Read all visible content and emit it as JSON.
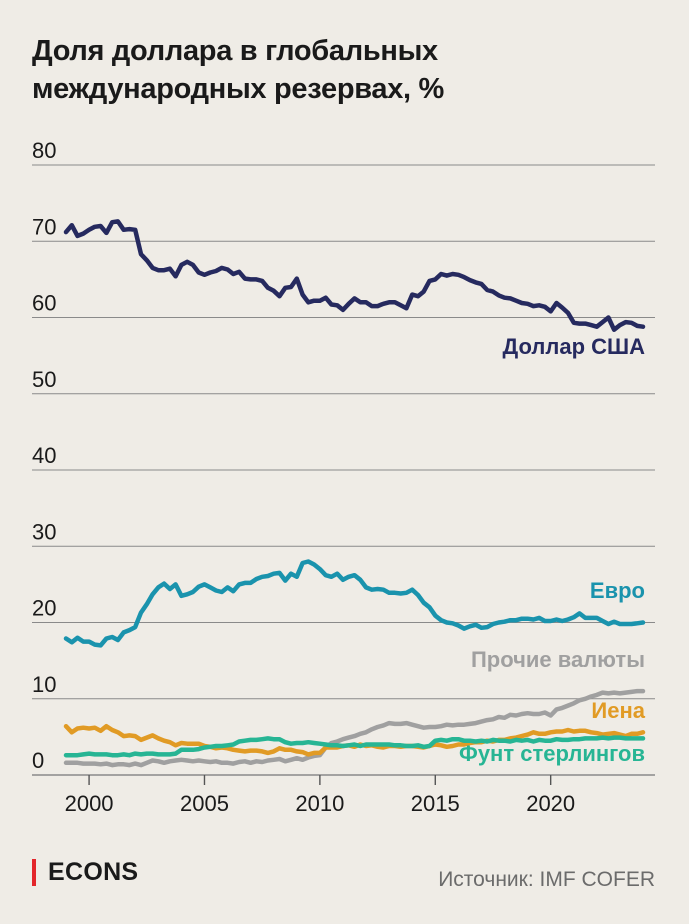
{
  "title": "Доля доллара в глобальных международных резервах, %",
  "source": "Источник: IMF COFER",
  "brand": "ECONS",
  "colors": {
    "background": "#efece6",
    "brand_red": "#e3262b",
    "grid": "#8a8a8a",
    "usd": "#262a5f",
    "eur": "#1a93ad",
    "other": "#a0a0a0",
    "jpy": "#e19b25",
    "gbp": "#27b594"
  },
  "chart_data": {
    "type": "line",
    "title": "Доля доллара в глобальных международных резервах, %",
    "xlabel": "",
    "ylabel": "",
    "xlim": [
      1999,
      2024
    ],
    "ylim": [
      0,
      80
    ],
    "x_ticks": [
      2000,
      2005,
      2010,
      2015,
      2020
    ],
    "y_ticks": [
      0,
      10,
      20,
      30,
      40,
      50,
      60,
      70,
      80
    ],
    "grid": true,
    "series": [
      {
        "name": "Доллар США",
        "color": "#262a5f",
        "x": [
          1999.0,
          1999.25,
          1999.5,
          1999.75,
          2000.0,
          2000.25,
          2000.5,
          2000.75,
          2001.0,
          2001.25,
          2001.5,
          2001.75,
          2002.0,
          2002.25,
          2002.5,
          2002.75,
          2003.0,
          2003.25,
          2003.5,
          2003.75,
          2004.0,
          2004.25,
          2004.5,
          2004.75,
          2005.0,
          2005.25,
          2005.5,
          2005.75,
          2006.0,
          2006.25,
          2006.5,
          2006.75,
          2007.0,
          2007.25,
          2007.5,
          2007.75,
          2008.0,
          2008.25,
          2008.5,
          2008.75,
          2009.0,
          2009.25,
          2009.5,
          2009.75,
          2010.0,
          2010.25,
          2010.5,
          2010.75,
          2011.0,
          2011.25,
          2011.5,
          2011.75,
          2012.0,
          2012.25,
          2012.5,
          2012.75,
          2013.0,
          2013.25,
          2013.5,
          2013.75,
          2014.0,
          2014.25,
          2014.5,
          2014.75,
          2015.0,
          2015.25,
          2015.5,
          2015.75,
          2016.0,
          2016.25,
          2016.5,
          2016.75,
          2017.0,
          2017.25,
          2017.5,
          2017.75,
          2018.0,
          2018.25,
          2018.5,
          2018.75,
          2019.0,
          2019.25,
          2019.5,
          2019.75,
          2020.0,
          2020.25,
          2020.5,
          2020.75,
          2021.0,
          2021.25,
          2021.5,
          2021.75,
          2022.0,
          2022.25,
          2022.5,
          2022.75,
          2023.0,
          2023.25,
          2023.5,
          2023.75,
          2024.0
        ],
        "values": [
          71.2,
          72.1,
          70.7,
          71.0,
          71.5,
          71.9,
          72.0,
          71.1,
          72.5,
          72.6,
          71.5,
          71.6,
          71.5,
          68.3,
          67.5,
          66.5,
          66.2,
          66.2,
          66.4,
          65.4,
          66.9,
          67.3,
          66.9,
          65.9,
          65.6,
          65.9,
          66.1,
          66.5,
          66.3,
          65.7,
          66.0,
          65.1,
          65.0,
          65.0,
          64.8,
          63.9,
          63.5,
          62.8,
          63.9,
          64.0,
          65.1,
          63.0,
          62.0,
          62.2,
          62.2,
          62.6,
          61.7,
          61.6,
          61.0,
          61.8,
          62.5,
          62.0,
          62.0,
          61.5,
          61.5,
          61.8,
          62.0,
          62.0,
          61.6,
          61.2,
          63.0,
          62.8,
          63.4,
          64.8,
          65.0,
          65.7,
          65.5,
          65.7,
          65.6,
          65.3,
          64.9,
          64.6,
          64.4,
          63.6,
          63.4,
          62.9,
          62.6,
          62.5,
          62.2,
          61.9,
          61.8,
          61.5,
          61.6,
          61.4,
          60.8,
          61.9,
          61.3,
          60.6,
          59.3,
          59.2,
          59.2,
          59.0,
          58.8,
          59.4,
          60.0,
          58.4,
          59.0,
          59.4,
          59.3,
          58.9,
          58.8
        ]
      },
      {
        "name": "Евро",
        "color": "#1a93ad",
        "x": [
          1999.0,
          1999.25,
          1999.5,
          1999.75,
          2000.0,
          2000.25,
          2000.5,
          2000.75,
          2001.0,
          2001.25,
          2001.5,
          2001.75,
          2002.0,
          2002.25,
          2002.5,
          2002.75,
          2003.0,
          2003.25,
          2003.5,
          2003.75,
          2004.0,
          2004.25,
          2004.5,
          2004.75,
          2005.0,
          2005.25,
          2005.5,
          2005.75,
          2006.0,
          2006.25,
          2006.5,
          2006.75,
          2007.0,
          2007.25,
          2007.5,
          2007.75,
          2008.0,
          2008.25,
          2008.5,
          2008.75,
          2009.0,
          2009.25,
          2009.5,
          2009.75,
          2010.0,
          2010.25,
          2010.5,
          2010.75,
          2011.0,
          2011.25,
          2011.5,
          2011.75,
          2012.0,
          2012.25,
          2012.5,
          2012.75,
          2013.0,
          2013.25,
          2013.5,
          2013.75,
          2014.0,
          2014.25,
          2014.5,
          2014.75,
          2015.0,
          2015.25,
          2015.5,
          2015.75,
          2016.0,
          2016.25,
          2016.5,
          2016.75,
          2017.0,
          2017.25,
          2017.5,
          2017.75,
          2018.0,
          2018.25,
          2018.5,
          2018.75,
          2019.0,
          2019.25,
          2019.5,
          2019.75,
          2020.0,
          2020.25,
          2020.5,
          2020.75,
          2021.0,
          2021.25,
          2021.5,
          2021.75,
          2022.0,
          2022.25,
          2022.5,
          2022.75,
          2023.0,
          2023.25,
          2023.5,
          2023.75,
          2024.0
        ],
        "values": [
          17.9,
          17.4,
          18.0,
          17.5,
          17.5,
          17.1,
          17.0,
          17.9,
          18.1,
          17.7,
          18.7,
          19.0,
          19.4,
          21.3,
          22.4,
          23.7,
          24.6,
          25.1,
          24.4,
          25.0,
          23.5,
          23.7,
          24.0,
          24.7,
          25.0,
          24.6,
          24.2,
          24.0,
          24.6,
          24.1,
          25.0,
          25.2,
          25.2,
          25.7,
          26.0,
          26.1,
          26.4,
          26.5,
          25.5,
          26.4,
          26.0,
          27.8,
          28.0,
          27.6,
          27.0,
          26.2,
          26.0,
          26.4,
          25.6,
          26.0,
          26.2,
          25.6,
          24.6,
          24.3,
          24.4,
          24.3,
          23.9,
          23.9,
          23.8,
          23.9,
          24.3,
          23.6,
          22.6,
          22.0,
          20.9,
          20.3,
          20.0,
          19.9,
          19.6,
          19.2,
          19.5,
          19.7,
          19.3,
          19.4,
          19.8,
          20.0,
          20.1,
          20.3,
          20.3,
          20.5,
          20.5,
          20.4,
          20.6,
          20.2,
          20.2,
          20.4,
          20.2,
          20.4,
          20.7,
          21.2,
          20.6,
          20.6,
          20.6,
          20.2,
          19.8,
          20.1,
          19.8,
          19.8,
          19.8,
          19.9,
          20.0
        ]
      },
      {
        "name": "Прочие валюты",
        "color": "#a0a0a0",
        "x": [
          1999.0,
          1999.25,
          1999.5,
          1999.75,
          2000.0,
          2000.25,
          2000.5,
          2000.75,
          2001.0,
          2001.25,
          2001.5,
          2001.75,
          2002.0,
          2002.25,
          2002.5,
          2002.75,
          2003.0,
          2003.25,
          2003.5,
          2003.75,
          2004.0,
          2004.25,
          2004.5,
          2004.75,
          2005.0,
          2005.25,
          2005.5,
          2005.75,
          2006.0,
          2006.25,
          2006.5,
          2006.75,
          2007.0,
          2007.25,
          2007.5,
          2007.75,
          2008.0,
          2008.25,
          2008.5,
          2008.75,
          2009.0,
          2009.25,
          2009.5,
          2009.75,
          2010.0,
          2010.25,
          2010.5,
          2010.75,
          2011.0,
          2011.25,
          2011.5,
          2011.75,
          2012.0,
          2012.25,
          2012.5,
          2012.75,
          2013.0,
          2013.25,
          2013.5,
          2013.75,
          2014.0,
          2014.25,
          2014.5,
          2014.75,
          2015.0,
          2015.25,
          2015.5,
          2015.75,
          2016.0,
          2016.25,
          2016.5,
          2016.75,
          2017.0,
          2017.25,
          2017.5,
          2017.75,
          2018.0,
          2018.25,
          2018.5,
          2018.75,
          2019.0,
          2019.25,
          2019.5,
          2019.75,
          2020.0,
          2020.25,
          2020.5,
          2020.75,
          2021.0,
          2021.25,
          2021.5,
          2021.75,
          2022.0,
          2022.25,
          2022.5,
          2022.75,
          2023.0,
          2023.25,
          2023.5,
          2023.75,
          2024.0
        ],
        "values": [
          1.6,
          1.6,
          1.6,
          1.5,
          1.5,
          1.5,
          1.4,
          1.5,
          1.3,
          1.4,
          1.4,
          1.3,
          1.5,
          1.3,
          1.6,
          1.9,
          1.8,
          1.6,
          1.8,
          1.9,
          2.0,
          1.9,
          1.8,
          1.9,
          1.8,
          1.7,
          1.8,
          1.6,
          1.6,
          1.5,
          1.7,
          1.8,
          1.6,
          1.8,
          1.7,
          1.9,
          2.0,
          2.1,
          1.8,
          2.0,
          2.2,
          2.0,
          2.3,
          2.5,
          2.6,
          3.6,
          4.2,
          4.4,
          4.7,
          4.9,
          5.1,
          5.4,
          5.6,
          6.0,
          6.3,
          6.5,
          6.8,
          6.7,
          6.7,
          6.8,
          6.6,
          6.4,
          6.2,
          6.3,
          6.3,
          6.4,
          6.6,
          6.5,
          6.6,
          6.6,
          6.7,
          6.8,
          7.0,
          7.2,
          7.3,
          7.6,
          7.5,
          7.9,
          7.8,
          8.0,
          8.1,
          8.0,
          8.0,
          8.2,
          7.8,
          8.6,
          8.8,
          9.1,
          9.4,
          9.8,
          10.0,
          10.3,
          10.5,
          10.8,
          10.7,
          10.8,
          10.7,
          10.8,
          10.9,
          11.0,
          11.0
        ]
      },
      {
        "name": "Иена",
        "color": "#e19b25",
        "x": [
          1999.0,
          1999.25,
          1999.5,
          1999.75,
          2000.0,
          2000.25,
          2000.5,
          2000.75,
          2001.0,
          2001.25,
          2001.5,
          2001.75,
          2002.0,
          2002.25,
          2002.5,
          2002.75,
          2003.0,
          2003.25,
          2003.5,
          2003.75,
          2004.0,
          2004.25,
          2004.5,
          2004.75,
          2005.0,
          2005.25,
          2005.5,
          2005.75,
          2006.0,
          2006.25,
          2006.5,
          2006.75,
          2007.0,
          2007.25,
          2007.5,
          2007.75,
          2008.0,
          2008.25,
          2008.5,
          2008.75,
          2009.0,
          2009.25,
          2009.5,
          2009.75,
          2010.0,
          2010.25,
          2010.5,
          2010.75,
          2011.0,
          2011.25,
          2011.5,
          2011.75,
          2012.0,
          2012.25,
          2012.5,
          2012.75,
          2013.0,
          2013.25,
          2013.5,
          2013.75,
          2014.0,
          2014.25,
          2014.5,
          2014.75,
          2015.0,
          2015.25,
          2015.5,
          2015.75,
          2016.0,
          2016.25,
          2016.5,
          2016.75,
          2017.0,
          2017.25,
          2017.5,
          2017.75,
          2018.0,
          2018.25,
          2018.5,
          2018.75,
          2019.0,
          2019.25,
          2019.5,
          2019.75,
          2020.0,
          2020.25,
          2020.5,
          2020.75,
          2021.0,
          2021.25,
          2021.5,
          2021.75,
          2022.0,
          2022.25,
          2022.5,
          2022.75,
          2023.0,
          2023.25,
          2023.5,
          2023.75,
          2024.0
        ],
        "values": [
          6.4,
          5.6,
          6.1,
          6.2,
          6.1,
          6.2,
          5.8,
          6.4,
          5.9,
          5.6,
          5.1,
          5.2,
          5.1,
          4.6,
          4.9,
          5.2,
          4.8,
          4.5,
          4.3,
          3.9,
          4.2,
          4.1,
          4.1,
          4.1,
          3.8,
          3.7,
          3.5,
          3.6,
          3.5,
          3.3,
          3.2,
          3.1,
          3.2,
          3.2,
          3.1,
          2.9,
          3.1,
          3.5,
          3.3,
          3.3,
          3.1,
          3.0,
          2.7,
          2.9,
          2.9,
          3.6,
          3.6,
          3.6,
          3.8,
          3.9,
          3.7,
          4.0,
          3.8,
          3.9,
          3.7,
          3.6,
          3.8,
          3.8,
          3.7,
          3.8,
          3.8,
          3.7,
          3.6,
          3.8,
          4.0,
          3.9,
          3.7,
          3.8,
          4.0,
          4.0,
          4.2,
          4.3,
          4.3,
          4.5,
          4.4,
          4.6,
          4.6,
          4.8,
          4.9,
          5.1,
          5.3,
          5.6,
          5.4,
          5.4,
          5.6,
          5.7,
          5.7,
          5.9,
          5.7,
          5.8,
          5.8,
          5.6,
          5.5,
          5.3,
          5.4,
          5.5,
          5.3,
          5.1,
          5.4,
          5.4,
          5.6
        ]
      },
      {
        "name": "Фунт стерлингов",
        "color": "#27b594",
        "x": [
          1999.0,
          1999.25,
          1999.5,
          1999.75,
          2000.0,
          2000.25,
          2000.5,
          2000.75,
          2001.0,
          2001.25,
          2001.5,
          2001.75,
          2002.0,
          2002.25,
          2002.5,
          2002.75,
          2003.0,
          2003.25,
          2003.5,
          2003.75,
          2004.0,
          2004.25,
          2004.5,
          2004.75,
          2005.0,
          2005.25,
          2005.5,
          2005.75,
          2006.0,
          2006.25,
          2006.5,
          2006.75,
          2007.0,
          2007.25,
          2007.5,
          2007.75,
          2008.0,
          2008.25,
          2008.5,
          2008.75,
          2009.0,
          2009.25,
          2009.5,
          2009.75,
          2010.0,
          2010.25,
          2010.5,
          2010.75,
          2011.0,
          2011.25,
          2011.5,
          2011.75,
          2012.0,
          2012.25,
          2012.5,
          2012.75,
          2013.0,
          2013.25,
          2013.5,
          2013.75,
          2014.0,
          2014.25,
          2014.5,
          2014.75,
          2015.0,
          2015.25,
          2015.5,
          2015.75,
          2016.0,
          2016.25,
          2016.5,
          2016.75,
          2017.0,
          2017.25,
          2017.5,
          2017.75,
          2018.0,
          2018.25,
          2018.5,
          2018.75,
          2019.0,
          2019.25,
          2019.5,
          2019.75,
          2020.0,
          2020.25,
          2020.5,
          2020.75,
          2021.0,
          2021.25,
          2021.5,
          2021.75,
          2022.0,
          2022.25,
          2022.5,
          2022.75,
          2023.0,
          2023.25,
          2023.5,
          2023.75,
          2024.0
        ],
        "values": [
          2.6,
          2.6,
          2.6,
          2.7,
          2.8,
          2.7,
          2.7,
          2.7,
          2.6,
          2.6,
          2.7,
          2.6,
          2.8,
          2.7,
          2.8,
          2.8,
          2.7,
          2.7,
          2.7,
          2.8,
          3.3,
          3.3,
          3.3,
          3.4,
          3.6,
          3.7,
          3.8,
          3.8,
          3.9,
          4.0,
          4.4,
          4.5,
          4.6,
          4.6,
          4.7,
          4.8,
          4.7,
          4.7,
          4.3,
          4.1,
          4.2,
          4.2,
          4.3,
          4.2,
          4.1,
          4.0,
          3.9,
          3.9,
          3.8,
          3.9,
          4.0,
          3.8,
          4.0,
          4.0,
          4.0,
          4.0,
          4.0,
          3.9,
          3.9,
          3.8,
          3.8,
          3.9,
          3.7,
          3.8,
          4.5,
          4.6,
          4.5,
          4.7,
          4.7,
          4.5,
          4.5,
          4.4,
          4.5,
          4.4,
          4.6,
          4.5,
          4.5,
          4.4,
          4.6,
          4.5,
          4.6,
          4.4,
          4.6,
          4.5,
          4.5,
          4.7,
          4.6,
          4.6,
          4.7,
          4.7,
          4.8,
          4.8,
          4.8,
          4.9,
          4.8,
          4.9,
          4.9,
          4.8,
          4.8,
          4.8,
          4.8
        ]
      }
    ]
  }
}
